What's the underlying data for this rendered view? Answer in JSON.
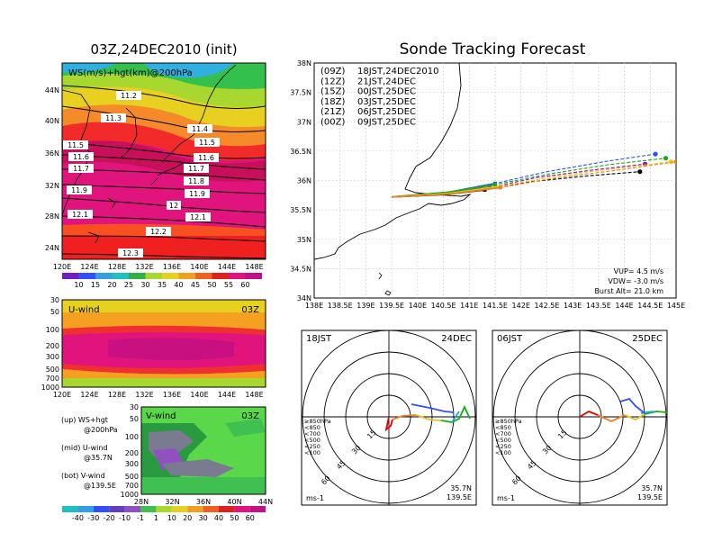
{
  "left": {
    "title": "03Z,24DEC2010 (init)",
    "map": {
      "label": "WS(m/s)+hgt(km)@200hPa",
      "lat_ticks": [
        "44N",
        "40N",
        "36N",
        "32N",
        "28N",
        "24N"
      ],
      "lon_ticks": [
        "120E",
        "124E",
        "128E",
        "132E",
        "136E",
        "140E",
        "144E",
        "148E"
      ],
      "hgt_labels": [
        "11.2",
        "11.3",
        "11.4",
        "11.5",
        "11.5",
        "11.6",
        "11.6",
        "11.7",
        "11.7",
        "11.8",
        "11.9",
        "11.9",
        "12",
        "12.1",
        "12.1",
        "12.2",
        "12.3"
      ]
    },
    "ws_colorbar": [
      "10",
      "15",
      "20",
      "25",
      "30",
      "35",
      "40",
      "45",
      "50",
      "55",
      "60"
    ],
    "u_panel": {
      "label": "U-wind",
      "time": "03Z",
      "p_ticks": [
        "30",
        "50",
        "100",
        "200",
        "300",
        "500",
        "700",
        "1000"
      ],
      "lon_ticks": [
        "120E",
        "124E",
        "128E",
        "132E",
        "136E",
        "140E",
        "144E",
        "148E"
      ]
    },
    "v_panel": {
      "label": "V-wind",
      "time": "03Z",
      "p_ticks": [
        "30",
        "50",
        "100",
        "200",
        "300",
        "500",
        "700",
        "1000"
      ],
      "lat_ticks": [
        "28N",
        "32N",
        "36N",
        "40N",
        "44N"
      ]
    },
    "legend": {
      "up": "(up) WS+hgt",
      "up2": "@200hPa",
      "mid": "(mid) U-wind",
      "mid2": "@35.7N",
      "bot": "(bot) V-wind",
      "bot2": "@139.5E"
    },
    "wind_colorbar": [
      "-40",
      "-30",
      "-20",
      "-10",
      "-1",
      "1",
      "10",
      "20",
      "30",
      "40",
      "50",
      "60"
    ]
  },
  "right": {
    "title": "Sonde Tracking Forecast",
    "legend": [
      {
        "code": "(09Z)",
        "text": "18JST,24DEC2010",
        "color": "#000000"
      },
      {
        "code": "(12Z)",
        "text": "21JST,24DEC",
        "color": "#b000b0"
      },
      {
        "code": "(15Z)",
        "text": "00JST,25DEC",
        "color": "#3050ff"
      },
      {
        "code": "(18Z)",
        "text": "03JST,25DEC",
        "color": "#10b010"
      },
      {
        "code": "(21Z)",
        "text": "06JST,25DEC",
        "color": "#e0d020"
      },
      {
        "code": "(00Z)",
        "text": "09JST,25DEC",
        "color": "#f08020"
      }
    ],
    "lat_ticks": [
      "38N",
      "37.5N",
      "37N",
      "36.5N",
      "36N",
      "35.5N",
      "35N",
      "34.5N",
      "34N"
    ],
    "lon_ticks": [
      "138E",
      "138.5E",
      "139E",
      "139.5E",
      "140E",
      "140.5E",
      "141E",
      "141.5E",
      "142E",
      "142.5E",
      "143E",
      "143.5E",
      "144E",
      "144.5E",
      "145E"
    ],
    "params": {
      "vup": "VUP= 4.5 m/s",
      "vdw": "VDW= -3.0 m/s",
      "burst": "Burst Alt= 21.0 km"
    }
  },
  "polar_left": {
    "time": "18JST",
    "date": "24DEC",
    "rings": [
      "15",
      "30",
      "45",
      "60"
    ],
    "pressure_legend": [
      {
        "text": "≥850hPa",
        "color": "#e00000"
      },
      {
        "text": "<850",
        "color": "#f08020"
      },
      {
        "text": "<700",
        "color": "#e0c020"
      },
      {
        "text": "<500",
        "color": "#10b010"
      },
      {
        "text": "<250",
        "color": "#20a0e0"
      },
      {
        "text": "<100",
        "color": "#3050ff"
      }
    ],
    "unit": "ms-1",
    "loc_lat": "35.7N",
    "loc_lon": "139.5E"
  },
  "polar_right": {
    "time": "06JST",
    "date": "25DEC",
    "rings": [
      "15",
      "30",
      "45",
      "60"
    ],
    "pressure_legend": [
      {
        "text": "≥850hPa",
        "color": "#e00000"
      },
      {
        "text": "<850",
        "color": "#f08020"
      },
      {
        "text": "<700",
        "color": "#e0c020"
      },
      {
        "text": "<500",
        "color": "#10b010"
      },
      {
        "text": "<250",
        "color": "#20a0e0"
      },
      {
        "text": "<100",
        "color": "#3050ff"
      }
    ],
    "unit": "ms-1",
    "loc_lat": "35.7N",
    "loc_lon": "139.5E"
  },
  "chart_data": [
    {
      "type": "line",
      "title": "Sonde Tracking Forecast",
      "xlim": [
        138,
        145
      ],
      "ylim": [
        34,
        38
      ],
      "series": [
        {
          "name": "(09Z) 18JST,24DEC2010",
          "x": [
            139.5,
            140.5,
            141.3,
            142.2,
            143.3,
            144.3
          ],
          "y": [
            35.72,
            35.76,
            35.84,
            35.98,
            36.08,
            36.15
          ]
        },
        {
          "name": "(12Z) 21JST,24DEC",
          "x": [
            139.5,
            140.5,
            141.4,
            142.3,
            143.4,
            144.4
          ],
          "y": [
            35.72,
            35.78,
            35.88,
            36.05,
            36.18,
            36.28
          ]
        },
        {
          "name": "(15Z) 00JST,25DEC",
          "x": [
            139.5,
            140.6,
            141.5,
            142.5,
            143.6,
            144.6
          ],
          "y": [
            35.72,
            35.8,
            35.95,
            36.15,
            36.32,
            36.45
          ]
        },
        {
          "name": "(18Z) 03JST,25DEC",
          "x": [
            139.5,
            140.6,
            141.5,
            142.6,
            143.7,
            144.8
          ],
          "y": [
            35.72,
            35.8,
            35.93,
            36.12,
            36.27,
            36.38
          ]
        },
        {
          "name": "(21Z) 06JST,25DEC",
          "x": [
            139.5,
            140.6,
            141.6,
            142.7,
            143.8,
            144.9
          ],
          "y": [
            35.72,
            35.78,
            35.9,
            36.08,
            36.2,
            36.32
          ]
        },
        {
          "name": "(00Z) 09JST,25DEC",
          "x": [
            139.5,
            140.6,
            141.6,
            142.7,
            143.9,
            145.0
          ],
          "y": [
            35.72,
            35.77,
            35.88,
            36.05,
            36.18,
            36.32
          ]
        }
      ]
    }
  ]
}
